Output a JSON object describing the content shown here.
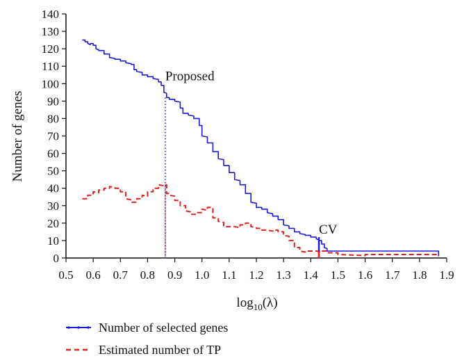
{
  "chart_data": {
    "type": "line",
    "xlabel_base": "log",
    "xlabel_sub": "10",
    "xlabel_arg": "(λ)",
    "ylabel": "Number of genes",
    "xlim": [
      0.5,
      1.9
    ],
    "ylim": [
      0,
      140
    ],
    "xticks": [
      "0.5",
      "0.6",
      "0.7",
      "0.8",
      "0.9",
      "1.0",
      "1.1",
      "1.2",
      "1.3",
      "1.4",
      "1.5",
      "1.6",
      "1.7",
      "1.8",
      "1.9"
    ],
    "yticks": [
      "0",
      "10",
      "20",
      "30",
      "40",
      "50",
      "60",
      "70",
      "80",
      "90",
      "100",
      "110",
      "120",
      "130",
      "140"
    ],
    "grid": false,
    "legend_position": "bottom-left",
    "colors": {
      "selected": "#1a1adc",
      "tp": "#e0201c",
      "axis": "#111111"
    },
    "series": [
      {
        "name": "Number of selected genes",
        "style": "solid",
        "x": [
          0.56,
          0.57,
          0.58,
          0.59,
          0.6,
          0.61,
          0.62,
          0.64,
          0.66,
          0.68,
          0.7,
          0.72,
          0.74,
          0.75,
          0.76,
          0.78,
          0.8,
          0.82,
          0.84,
          0.85,
          0.86,
          0.87,
          0.88,
          0.9,
          0.92,
          0.93,
          0.95,
          0.97,
          0.99,
          1.0,
          1.02,
          1.04,
          1.06,
          1.08,
          1.1,
          1.12,
          1.14,
          1.16,
          1.18,
          1.2,
          1.22,
          1.24,
          1.26,
          1.28,
          1.3,
          1.32,
          1.34,
          1.36,
          1.38,
          1.4,
          1.42,
          1.43,
          1.44,
          1.45,
          1.46,
          1.87
        ],
        "y": [
          125,
          124,
          123,
          123,
          122,
          120,
          119,
          117,
          115,
          114,
          113,
          112,
          111,
          108,
          107,
          105,
          104,
          103,
          101,
          99,
          95,
          92,
          91,
          90,
          86,
          83,
          82,
          80,
          76,
          70,
          66,
          61,
          57,
          53,
          49,
          45,
          42,
          37,
          32,
          29,
          28,
          26,
          24,
          22,
          19,
          17,
          15,
          14,
          13,
          12,
          11,
          10,
          8,
          6,
          4,
          1
        ]
      },
      {
        "name": "Estimated number of TP",
        "style": "dashed",
        "x": [
          0.56,
          0.58,
          0.6,
          0.62,
          0.64,
          0.66,
          0.68,
          0.7,
          0.72,
          0.74,
          0.76,
          0.78,
          0.8,
          0.82,
          0.84,
          0.86,
          0.87,
          0.88,
          0.9,
          0.92,
          0.94,
          0.96,
          0.98,
          1.0,
          1.02,
          1.04,
          1.06,
          1.08,
          1.1,
          1.12,
          1.14,
          1.16,
          1.18,
          1.2,
          1.22,
          1.24,
          1.26,
          1.28,
          1.3,
          1.32,
          1.34,
          1.36,
          1.38,
          1.4,
          1.42,
          1.44,
          1.46,
          1.5,
          1.6,
          1.87
        ],
        "y": [
          34,
          36,
          38,
          39,
          40,
          41,
          40,
          38,
          34,
          32,
          34,
          36,
          38,
          40,
          42,
          42,
          37,
          36,
          33,
          30,
          27,
          25,
          26,
          28,
          29,
          23,
          21,
          18,
          18,
          18,
          19,
          20,
          18,
          17,
          16,
          16,
          16,
          15,
          13,
          10,
          6,
          4,
          4,
          4,
          4,
          4,
          3,
          2,
          2,
          1
        ]
      }
    ],
    "annotations": [
      {
        "text": "Proposed",
        "x": 0.865,
        "y": 102
      },
      {
        "text": "CV",
        "x": 1.43,
        "y": 14
      }
    ],
    "markers": [
      {
        "x": 0.865,
        "y_top": 92,
        "style": "dotted",
        "color": "#1a1adc"
      },
      {
        "x": 0.865,
        "y_top": 41,
        "style": "dotted",
        "color": "#e0201c"
      },
      {
        "x": 1.43,
        "y_top": 12,
        "style": "solid",
        "color": "#1a1adc"
      },
      {
        "x": 1.43,
        "y_top": 4,
        "style": "solid",
        "color": "#e0201c"
      }
    ]
  }
}
